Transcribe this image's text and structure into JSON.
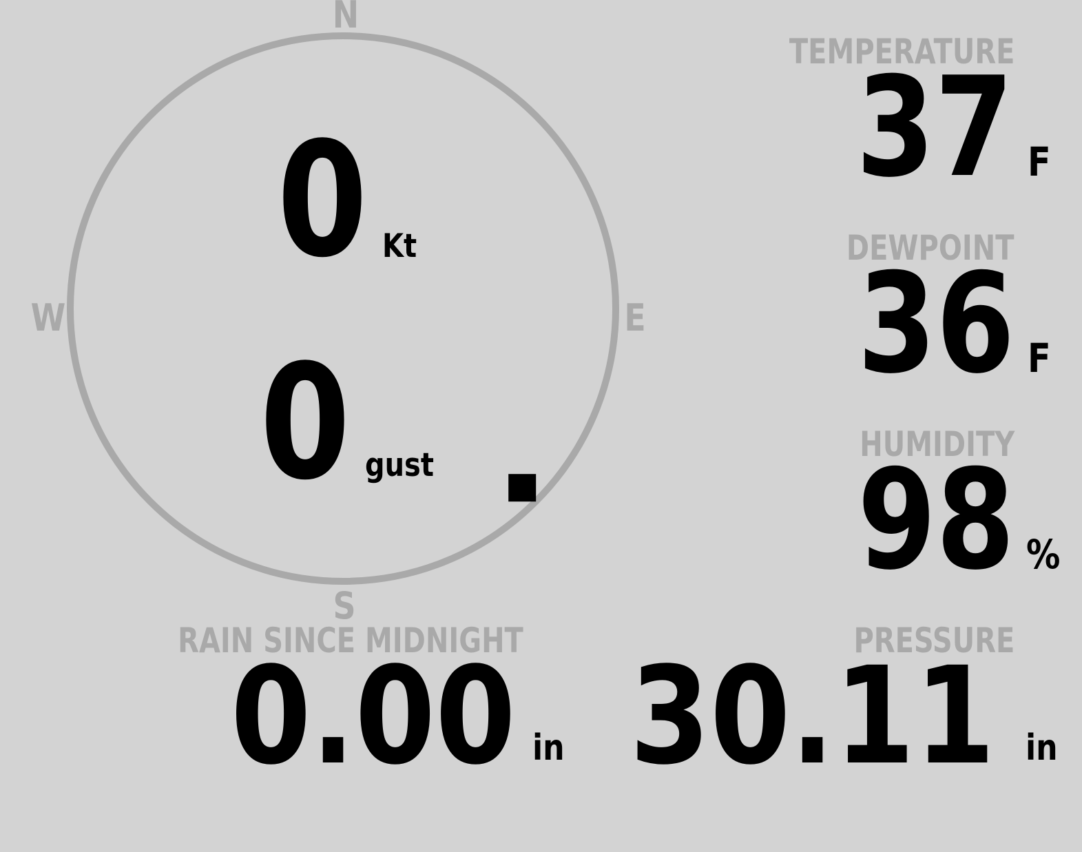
{
  "wind": {
    "compass": {
      "north": "N",
      "south": "S",
      "east": "E",
      "west": "W"
    },
    "speed": "0",
    "speed_unit": "Kt",
    "gust": "0",
    "gust_unit": "gust",
    "direction_degrees": 135,
    "colors": {
      "ring": "#a9a9a9",
      "marker": "#000000"
    }
  },
  "temperature": {
    "label": "TEMPERATURE",
    "value": "37",
    "unit": "F"
  },
  "dewpoint": {
    "label": "DEWPOINT",
    "value": "36",
    "unit": "F"
  },
  "humidity": {
    "label": "HUMIDITY",
    "value": "98",
    "unit": "%"
  },
  "rain": {
    "label": "RAIN SINCE MIDNIGHT",
    "value": "0.00",
    "unit": "in"
  },
  "pressure": {
    "label": "PRESSURE",
    "value": "30.11",
    "unit": "in"
  },
  "colors": {
    "background": "#d3d3d3",
    "label": "#a9a9a9",
    "value": "#000000"
  }
}
